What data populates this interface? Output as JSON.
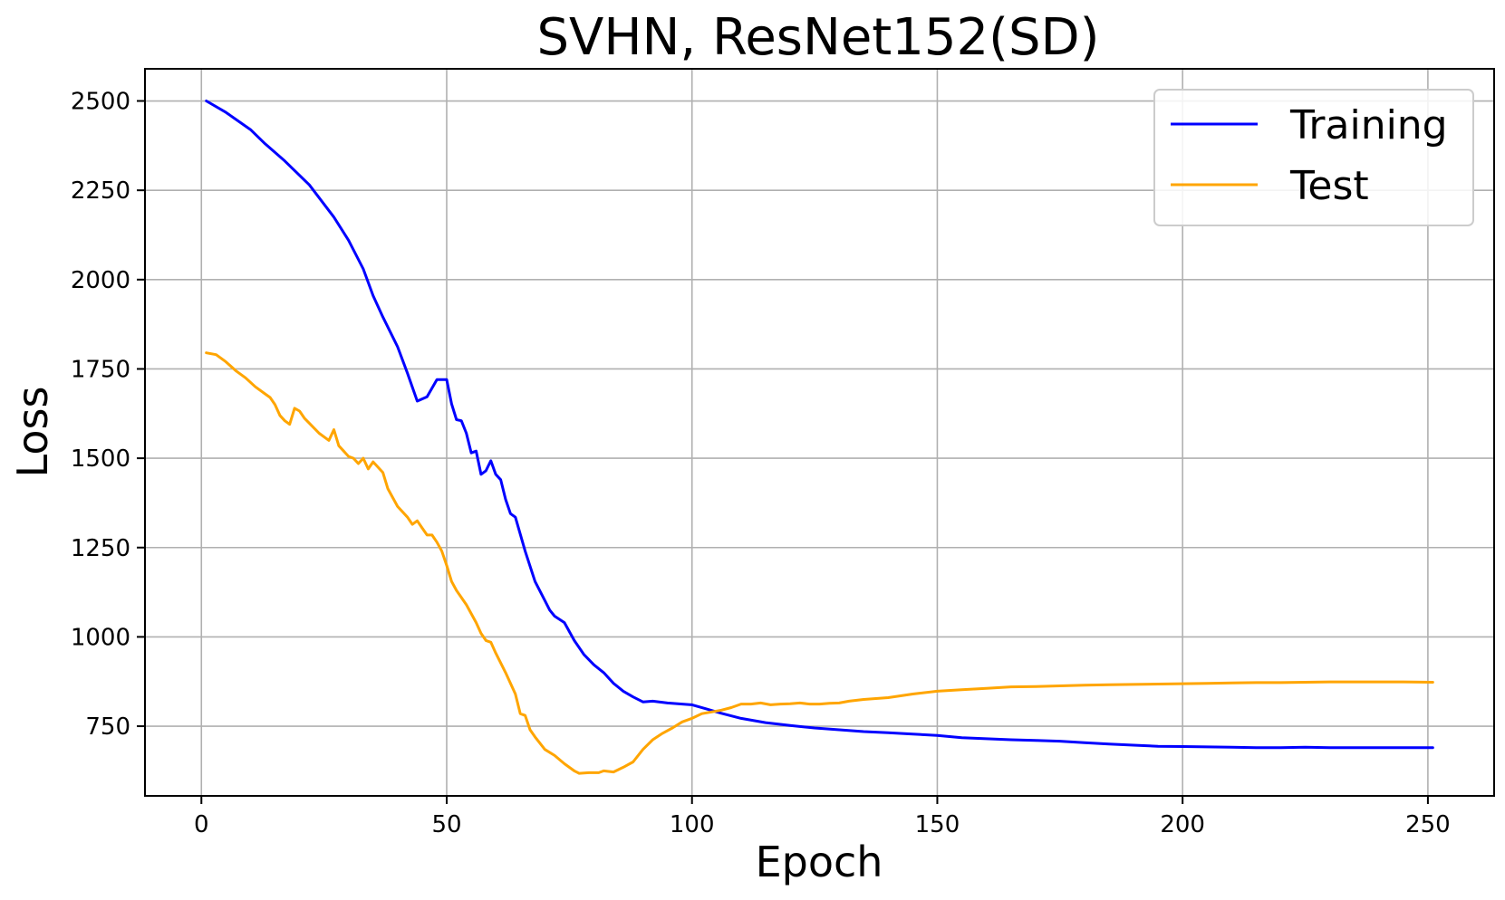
{
  "chart_data": {
    "type": "line",
    "title": "SVHN, ResNet152(SD)",
    "xlabel": "Epoch",
    "ylabel": "Loss",
    "xlim": [
      -11.5,
      263.5
    ],
    "ylim": [
      555,
      2590
    ],
    "xticks": [
      0,
      50,
      100,
      150,
      200,
      250
    ],
    "yticks": [
      750,
      1000,
      1250,
      1500,
      1750,
      2000,
      2250,
      2500
    ],
    "grid": true,
    "legend_position": "top-right",
    "series": [
      {
        "name": "Training",
        "color": "#0000ff",
        "x": [
          1,
          5,
          10,
          13,
          17,
          22,
          27,
          30,
          33,
          35,
          37,
          40,
          42,
          44,
          46,
          48,
          50,
          51,
          52,
          53,
          54,
          55,
          56,
          57,
          58,
          59,
          60,
          61,
          62,
          63,
          64,
          66,
          68,
          70,
          71,
          72,
          74,
          76,
          78,
          80,
          82,
          84,
          86,
          88,
          90,
          92,
          95,
          98,
          100,
          103,
          106,
          110,
          115,
          120,
          125,
          130,
          135,
          140,
          145,
          150,
          155,
          160,
          165,
          170,
          175,
          180,
          185,
          190,
          195,
          200,
          205,
          210,
          215,
          220,
          225,
          230,
          235,
          240,
          245,
          251
        ],
        "y": [
          2500,
          2468,
          2420,
          2380,
          2332,
          2265,
          2175,
          2110,
          2030,
          1955,
          1895,
          1812,
          1738,
          1660,
          1672,
          1720,
          1720,
          1652,
          1608,
          1605,
          1570,
          1515,
          1520,
          1455,
          1465,
          1493,
          1455,
          1440,
          1385,
          1345,
          1335,
          1240,
          1155,
          1102,
          1075,
          1058,
          1040,
          990,
          950,
          922,
          900,
          870,
          848,
          832,
          818,
          820,
          815,
          812,
          810,
          798,
          786,
          772,
          760,
          752,
          745,
          740,
          735,
          732,
          728,
          724,
          718,
          715,
          712,
          710,
          708,
          704,
          700,
          697,
          694,
          693,
          692,
          691,
          690,
          690,
          691,
          690,
          690,
          690,
          690,
          690
        ]
      },
      {
        "name": "Test",
        "color": "#ffa500",
        "x": [
          1,
          3,
          5,
          7,
          9,
          11,
          13,
          14,
          15,
          16,
          17,
          18,
          19,
          20,
          21,
          22,
          24,
          26,
          27,
          28,
          29,
          30,
          31,
          32,
          33,
          34,
          35,
          36,
          37,
          38,
          40,
          42,
          43,
          44,
          45,
          46,
          47,
          48,
          49,
          50,
          51,
          52,
          54,
          56,
          57,
          58,
          59,
          60,
          62,
          64,
          65,
          66,
          67,
          68,
          70,
          72,
          74,
          76,
          77,
          79,
          81,
          82,
          84,
          86,
          88,
          90,
          92,
          94,
          96,
          98,
          100,
          102,
          104,
          106,
          108,
          110,
          112,
          114,
          116,
          118,
          120,
          122,
          124,
          126,
          128,
          130,
          132,
          135,
          140,
          145,
          150,
          155,
          160,
          165,
          170,
          175,
          180,
          185,
          190,
          195,
          200,
          205,
          210,
          215,
          220,
          225,
          230,
          235,
          240,
          245,
          251
        ],
        "y": [
          1795,
          1790,
          1770,
          1745,
          1725,
          1700,
          1680,
          1670,
          1650,
          1620,
          1605,
          1595,
          1640,
          1632,
          1612,
          1598,
          1570,
          1550,
          1580,
          1535,
          1520,
          1505,
          1500,
          1485,
          1500,
          1470,
          1490,
          1475,
          1460,
          1415,
          1365,
          1335,
          1315,
          1325,
          1305,
          1285,
          1285,
          1265,
          1240,
          1200,
          1155,
          1130,
          1090,
          1040,
          1010,
          990,
          985,
          955,
          900,
          840,
          785,
          780,
          740,
          720,
          685,
          668,
          645,
          625,
          618,
          620,
          620,
          625,
          622,
          635,
          650,
          685,
          712,
          730,
          745,
          762,
          772,
          785,
          790,
          795,
          802,
          812,
          812,
          815,
          810,
          812,
          813,
          815,
          812,
          812,
          814,
          815,
          820,
          825,
          830,
          840,
          848,
          852,
          856,
          860,
          861,
          863,
          865,
          866,
          867,
          868,
          869,
          870,
          871,
          872,
          872,
          873,
          874,
          874,
          874,
          874,
          873
        ]
      }
    ]
  }
}
